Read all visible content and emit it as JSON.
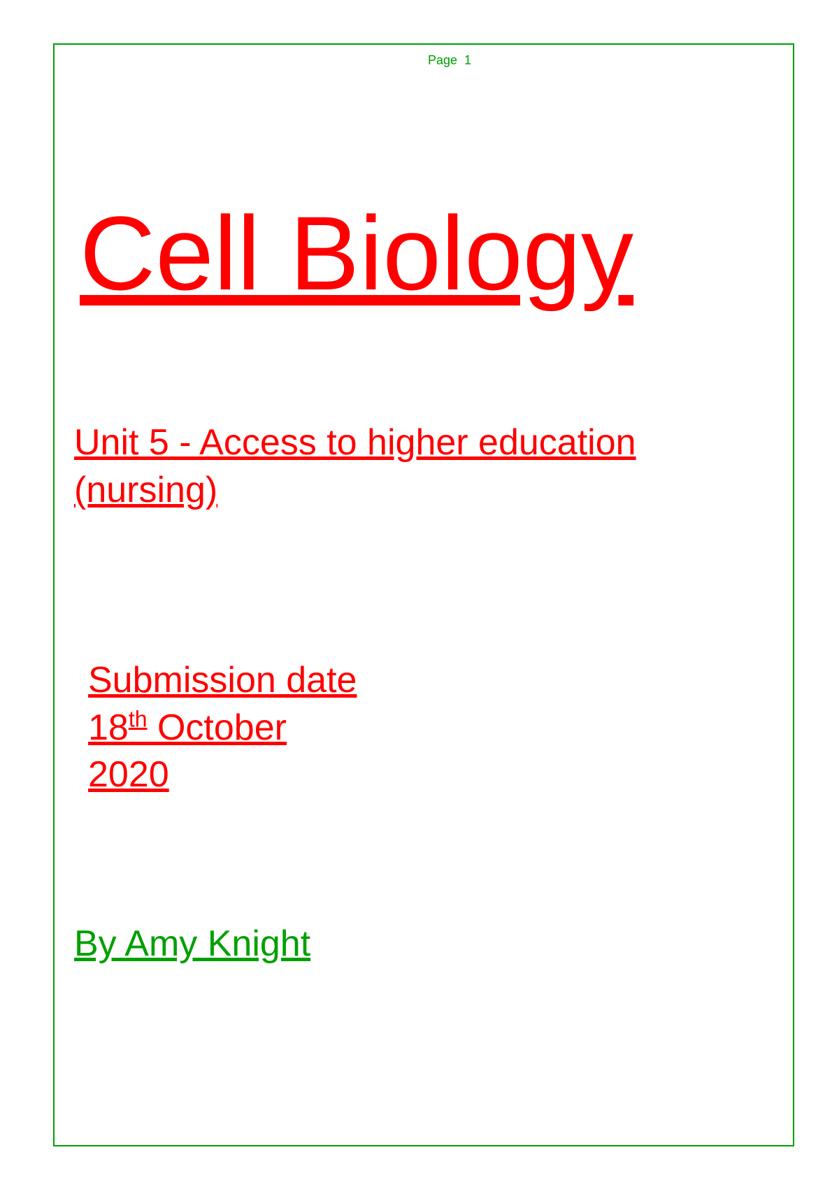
{
  "page": {
    "page_label": "Page",
    "page_number": "1",
    "border_color": "#00a000",
    "background_color": "#ffffff"
  },
  "title": {
    "text": "Cell Biology",
    "color": "#ff0000",
    "fontsize": 150
  },
  "subtitle": {
    "text": "Unit 5 - Access to higher education (nursing)",
    "color": "#ff0000",
    "fontsize": 52
  },
  "submission": {
    "line1": "Submission date",
    "day": "18",
    "ordinal": "th",
    "month": " October",
    "year": "2020",
    "color": "#ff0000",
    "fontsize": 52
  },
  "author": {
    "prefix": "By ",
    "name": "Amy Knight",
    "color": "#00a000",
    "fontsize": 52
  }
}
